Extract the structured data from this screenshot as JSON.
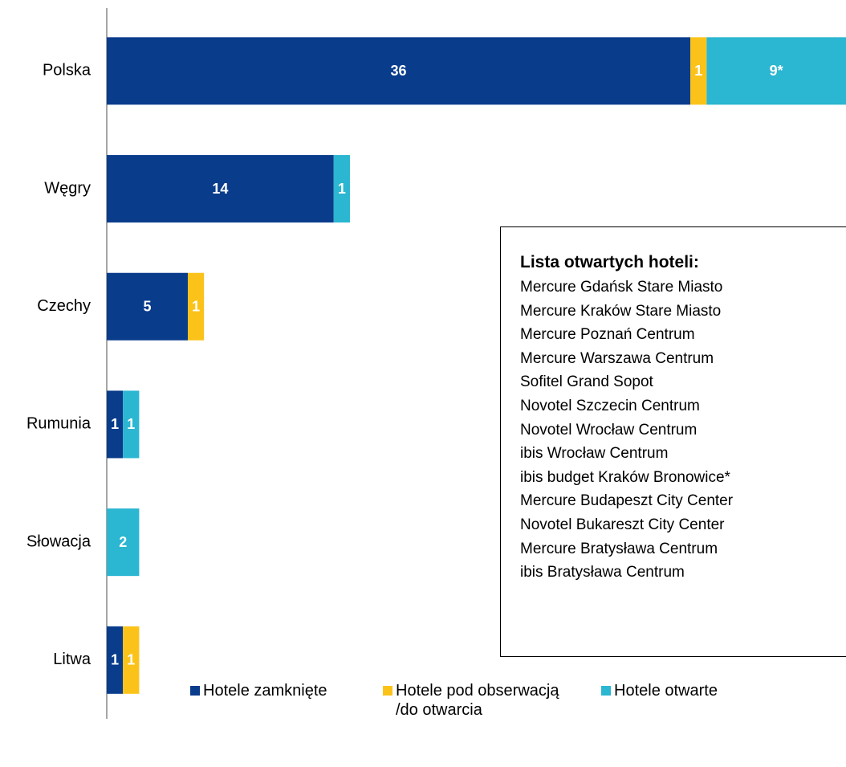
{
  "chart_data": {
    "type": "stacked-bar-horizontal",
    "categories": [
      "Polska",
      "Węgry",
      "Czechy",
      "Rumunia",
      "Słowacja",
      "Litwa"
    ],
    "series": [
      {
        "name": "Hotele zamknięte",
        "color": "#0a3c8c",
        "values": [
          36,
          14,
          5,
          1,
          null,
          1
        ]
      },
      {
        "name": "Hotele pod obserwacją /do otwarcia",
        "color": "#fbc31a",
        "values": [
          1,
          null,
          1,
          null,
          null,
          1
        ]
      },
      {
        "name": "Hotele otwarte",
        "color": "#2bb6d1",
        "values": [
          9,
          1,
          null,
          1,
          2,
          null
        ],
        "value_labels": [
          "9*",
          "1",
          null,
          "1",
          "2",
          null
        ]
      }
    ],
    "xlim": [
      0,
      45.6
    ],
    "annotation": {
      "title": "Lista otwartych hoteli:",
      "items": [
        "Mercure Gdańsk Stare Miasto",
        "Mercure Kraków Stare Miasto",
        "Mercure Poznań Centrum",
        "Mercure Warszawa Centrum",
        "Sofitel Grand Sopot",
        "Novotel Szczecin Centrum",
        "Novotel Wrocław Centrum",
        "ibis Wrocław Centrum",
        "ibis budget Kraków Bronowice*",
        "Mercure Budapeszt City Center",
        "Novotel Bukareszt City Center",
        "Mercure Bratysława Centrum",
        "ibis Bratysława Centrum"
      ]
    }
  }
}
